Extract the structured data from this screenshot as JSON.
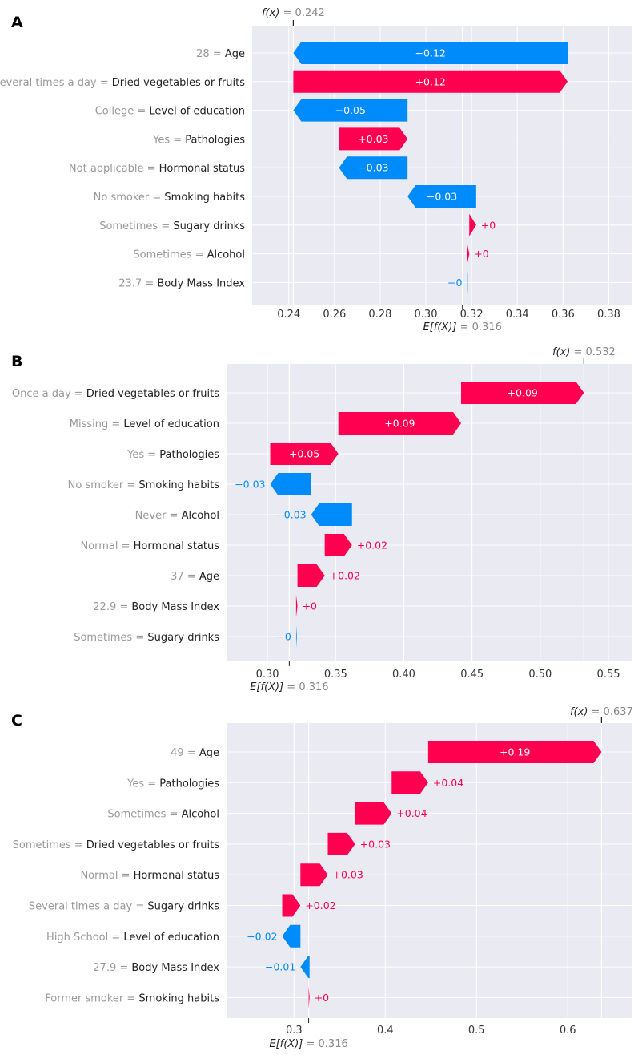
{
  "colors": {
    "positive": "#ff0051",
    "negative": "#008bfb",
    "plot_bg": "#eaeaf2",
    "grid": "#ffffff",
    "label_value": "#999999",
    "label_feature": "#222222",
    "axis_text": "#333333"
  },
  "chart_data": [
    {
      "panel_label": "A",
      "type": "waterfall",
      "base_value": 0.316,
      "output_value": 0.242,
      "fx_label": "f(x) = 0.242",
      "ex_label": "E[f(X)] = 0.316",
      "xlim": [
        0.224,
        0.39
      ],
      "xticks": [
        0.24,
        0.26,
        0.28,
        0.3,
        0.32,
        0.34,
        0.36,
        0.38
      ],
      "xtick_labels": [
        "0.24",
        "0.26",
        "0.28",
        "0.30",
        "0.32",
        "0.34",
        "0.36",
        "0.38"
      ],
      "features": [
        {
          "value": "28",
          "name": "Age",
          "shap": -0.12,
          "label": "−0.12"
        },
        {
          "value": "Several times a day",
          "name": "Dried vegetables or fruits",
          "shap": 0.12,
          "label": "+0.12"
        },
        {
          "value": "College",
          "name": "Level of education",
          "shap": -0.05,
          "label": "−0.05"
        },
        {
          "value": "Yes",
          "name": "Pathologies",
          "shap": 0.03,
          "label": "+0.03"
        },
        {
          "value": "Not applicable",
          "name": "Hormonal status",
          "shap": -0.03,
          "label": "−0.03"
        },
        {
          "value": "No smoker",
          "name": "Smoking habits",
          "shap": -0.03,
          "label": "−0.03"
        },
        {
          "value": "Sometimes",
          "name": "Sugary drinks",
          "shap": 0.003,
          "label": "+0"
        },
        {
          "value": "Sometimes",
          "name": "Alcohol",
          "shap": 0.001,
          "label": "+0"
        },
        {
          "value": "23.7",
          "name": "Body Mass Index",
          "shap": -0.0003,
          "label": "−0"
        }
      ]
    },
    {
      "panel_label": "B",
      "type": "waterfall",
      "base_value": 0.316,
      "output_value": 0.532,
      "fx_label": "f(x) = 0.532",
      "ex_label": "E[f(X)] = 0.316",
      "xlim": [
        0.27,
        0.567
      ],
      "xticks": [
        0.3,
        0.35,
        0.4,
        0.45,
        0.5,
        0.55
      ],
      "xtick_labels": [
        "0.30",
        "0.35",
        "0.40",
        "0.45",
        "0.50",
        "0.55"
      ],
      "features": [
        {
          "value": "Once a day",
          "name": "Dried vegetables or fruits",
          "shap": 0.09,
          "label": "+0.09"
        },
        {
          "value": "Missing",
          "name": "Level of education",
          "shap": 0.09,
          "label": "+0.09"
        },
        {
          "value": "Yes",
          "name": "Pathologies",
          "shap": 0.05,
          "label": "+0.05"
        },
        {
          "value": "No smoker",
          "name": "Smoking habits",
          "shap": -0.03,
          "label": "−0.03"
        },
        {
          "value": "Never",
          "name": "Alcohol",
          "shap": -0.03,
          "label": "−0.03"
        },
        {
          "value": "Normal",
          "name": "Hormonal status",
          "shap": 0.02,
          "label": "+0.02"
        },
        {
          "value": "37",
          "name": "Age",
          "shap": 0.02,
          "label": "+0.02"
        },
        {
          "value": "22.9",
          "name": "Body Mass Index",
          "shap": 0.001,
          "label": "+0"
        },
        {
          "value": "Sometimes",
          "name": "Sugary drinks",
          "shap": -0.0005,
          "label": "−0"
        }
      ]
    },
    {
      "panel_label": "C",
      "type": "waterfall",
      "base_value": 0.316,
      "output_value": 0.637,
      "fx_label": "f(x) = 0.637",
      "ex_label": "E[f(X)] = 0.316",
      "xlim": [
        0.226,
        0.67
      ],
      "xticks": [
        0.3,
        0.4,
        0.5,
        0.6
      ],
      "xtick_labels": [
        "0.3",
        "0.4",
        "0.5",
        "0.6"
      ],
      "features": [
        {
          "value": "49",
          "name": "Age",
          "shap": 0.19,
          "label": "+0.19"
        },
        {
          "value": "Yes",
          "name": "Pathologies",
          "shap": 0.04,
          "label": "+0.04"
        },
        {
          "value": "Sometimes",
          "name": "Alcohol",
          "shap": 0.04,
          "label": "+0.04"
        },
        {
          "value": "Sometimes",
          "name": "Dried vegetables or fruits",
          "shap": 0.03,
          "label": "+0.03"
        },
        {
          "value": "Normal",
          "name": "Hormonal status",
          "shap": 0.03,
          "label": "+0.03"
        },
        {
          "value": "Several times a day",
          "name": "Sugary drinks",
          "shap": 0.02,
          "label": "+0.02"
        },
        {
          "value": "High School",
          "name": "Level of education",
          "shap": -0.02,
          "label": "−0.02"
        },
        {
          "value": "27.9",
          "name": "Body Mass Index",
          "shap": -0.01,
          "label": "−0.01"
        },
        {
          "value": "Former smoker",
          "name": "Smoking habits",
          "shap": 0.001,
          "label": "+0"
        }
      ]
    }
  ]
}
